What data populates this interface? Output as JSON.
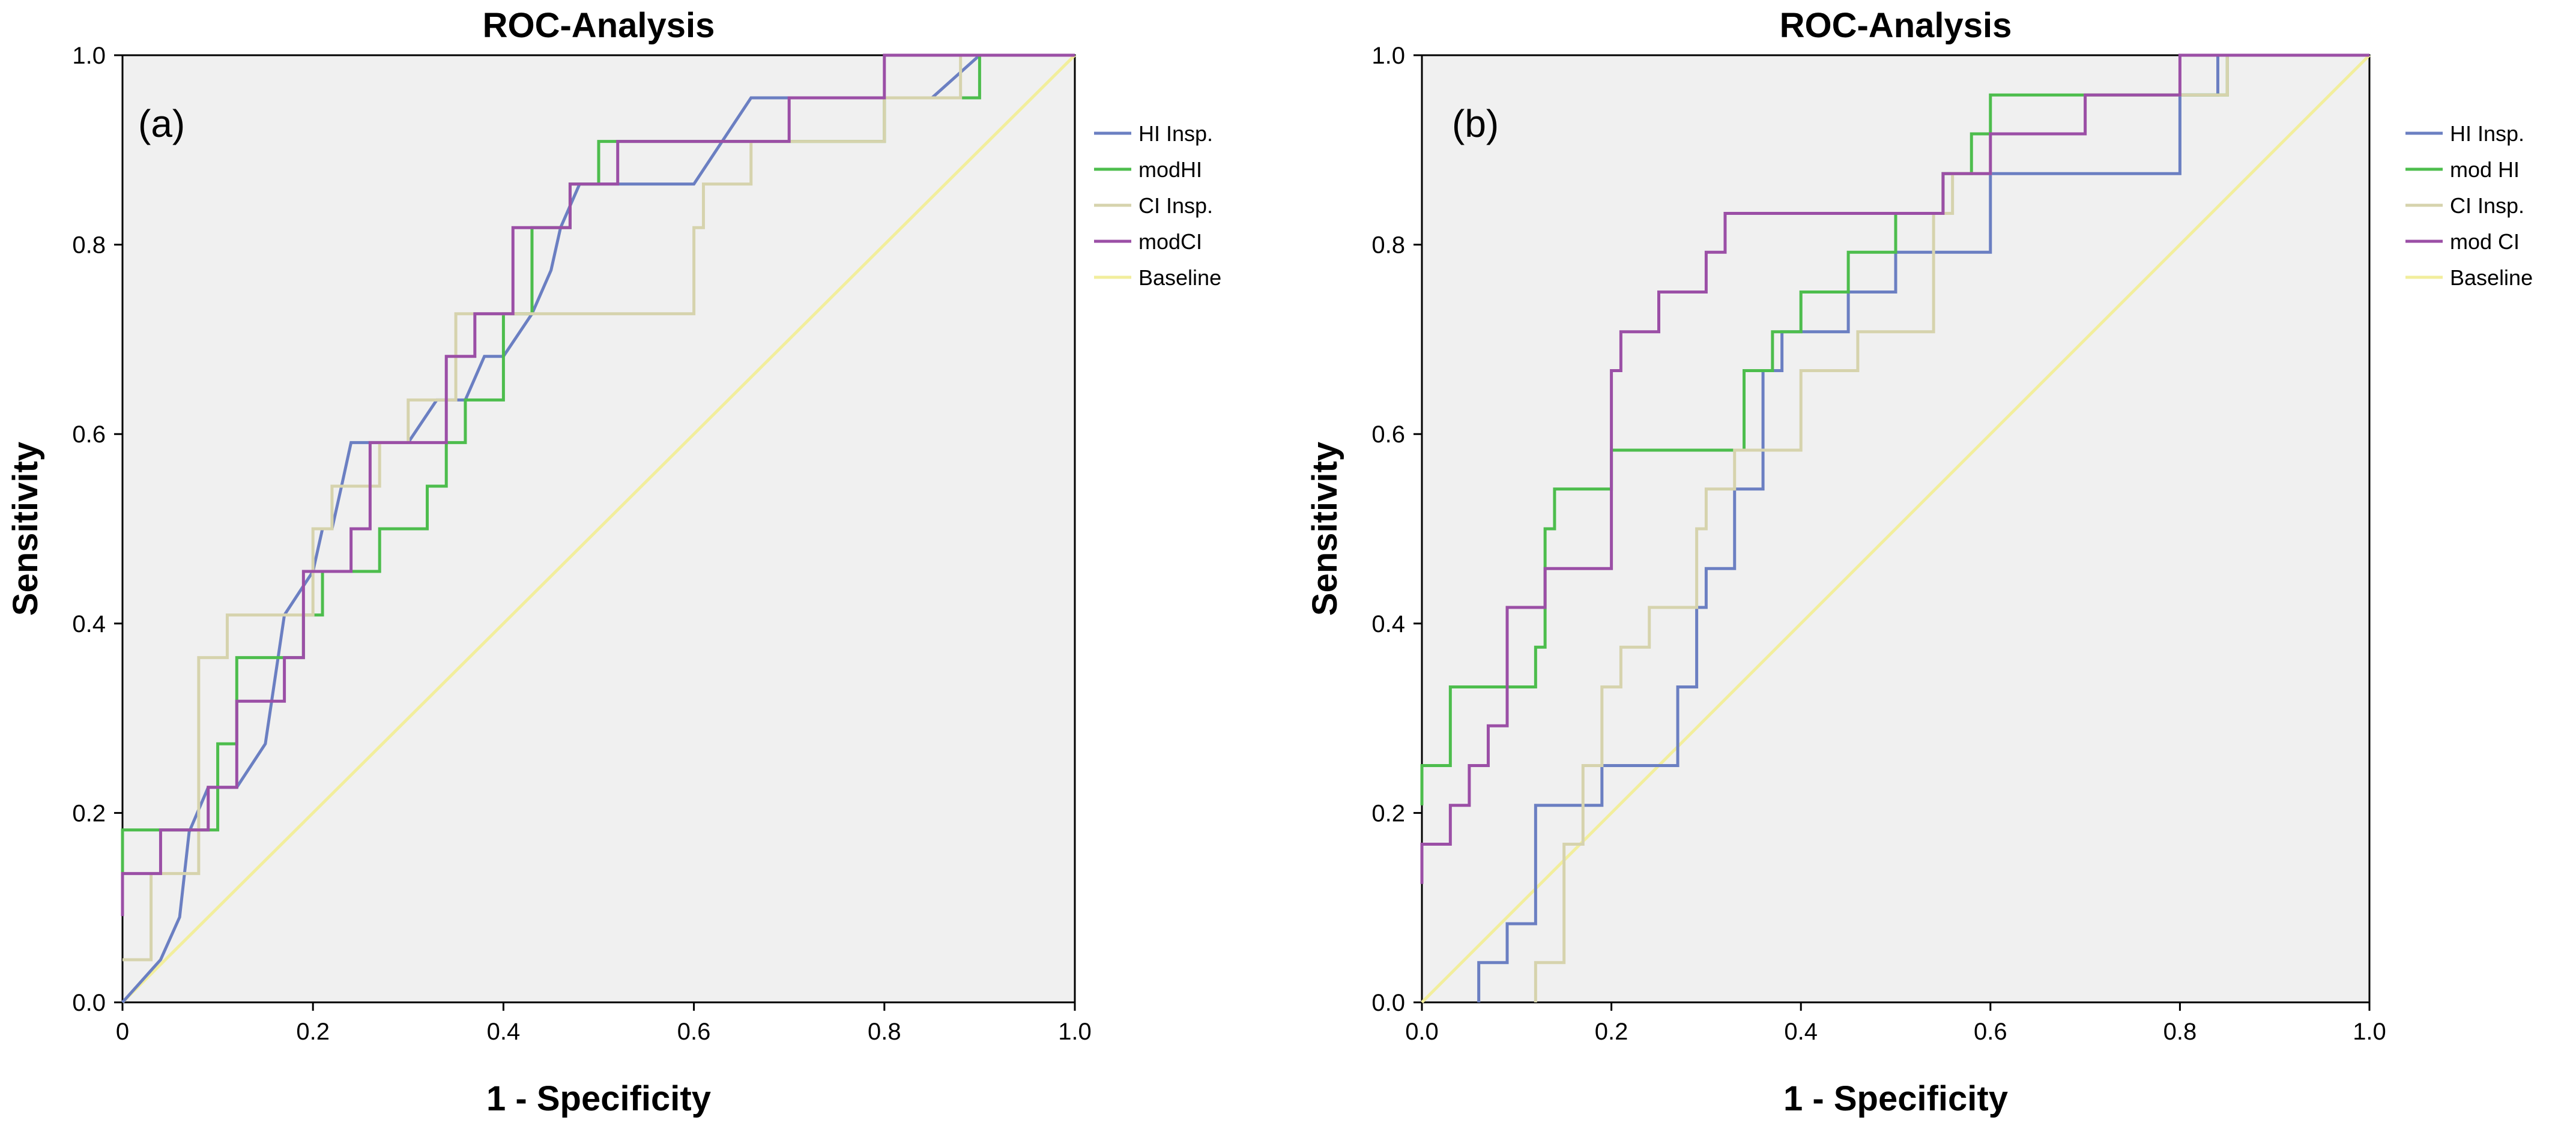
{
  "chart_data": [
    {
      "panel": "a",
      "type": "line",
      "title": "ROC-Analysis",
      "panel_label": "(a)",
      "xlabel": "1 - Specificity",
      "ylabel": "Sensitivity",
      "xlim": [
        0,
        1
      ],
      "ylim": [
        0,
        1
      ],
      "xticks": [
        "0",
        "0.2",
        "0.4",
        "0.6",
        "0.8",
        "1.0"
      ],
      "yticks": [
        "0.0",
        "0.2",
        "0.4",
        "0.6",
        "0.8",
        "1.0"
      ],
      "grid": false,
      "legend_position": "right",
      "plot_background": "#f0f0f0",
      "series": [
        {
          "name": "HI Insp.",
          "color": "#6b7fc2",
          "x": [
            0,
            0.04,
            0.06,
            0.07,
            0.09,
            0.12,
            0.15,
            0.17,
            0.2,
            0.21,
            0.22,
            0.23,
            0.24,
            0.3,
            0.33,
            0.36,
            0.38,
            0.4,
            0.43,
            0.45,
            0.46,
            0.48,
            0.52,
            0.56,
            0.6,
            0.66,
            0.7,
            0.75,
            0.8,
            0.85,
            0.9,
            0.95,
            1.0
          ],
          "y": [
            0,
            0.045,
            0.09,
            0.18,
            0.227,
            0.227,
            0.273,
            0.409,
            0.455,
            0.5,
            0.5,
            0.545,
            0.591,
            0.591,
            0.636,
            0.636,
            0.682,
            0.682,
            0.727,
            0.773,
            0.818,
            0.864,
            0.864,
            0.864,
            0.864,
            0.955,
            0.955,
            0.955,
            0.955,
            0.955,
            1.0,
            1.0,
            1.0
          ]
        },
        {
          "name": "modHI",
          "color": "#4dbd4d",
          "x": [
            0,
            0.04,
            0.1,
            0.12,
            0.17,
            0.19,
            0.21,
            0.24,
            0.27,
            0.32,
            0.34,
            0.36,
            0.4,
            0.43,
            0.47,
            0.5,
            0.55,
            0.6,
            0.65,
            0.7,
            0.75,
            0.8,
            0.85,
            0.9,
            0.95,
            1.0
          ],
          "y": [
            0.136,
            0.182,
            0.182,
            0.273,
            0.364,
            0.364,
            0.409,
            0.455,
            0.455,
            0.5,
            0.545,
            0.591,
            0.636,
            0.727,
            0.818,
            0.864,
            0.909,
            0.909,
            0.909,
            0.909,
            0.909,
            0.909,
            0.955,
            0.955,
            1.0,
            1.0
          ],
          "step": true
        },
        {
          "name": "CI Insp.",
          "color": "#d6d3ad",
          "x": [
            0,
            0.03,
            0.08,
            0.11,
            0.16,
            0.2,
            0.22,
            0.27,
            0.3,
            0.35,
            0.4,
            0.45,
            0.5,
            0.55,
            0.6,
            0.61,
            0.66,
            0.7,
            0.8,
            0.88,
            0.9,
            1.0
          ],
          "y": [
            0.045,
            0.045,
            0.136,
            0.364,
            0.409,
            0.409,
            0.5,
            0.545,
            0.591,
            0.636,
            0.727,
            0.727,
            0.727,
            0.727,
            0.727,
            0.818,
            0.864,
            0.909,
            0.909,
            0.955,
            1.0,
            1.0
          ],
          "step": true
        },
        {
          "name": "modCI",
          "color": "#9b4fa6",
          "x": [
            0,
            0.04,
            0.09,
            0.12,
            0.17,
            0.19,
            0.24,
            0.26,
            0.29,
            0.34,
            0.37,
            0.41,
            0.44,
            0.47,
            0.52,
            0.7,
            0.8,
            0.9,
            1.0
          ],
          "y": [
            0.091,
            0.136,
            0.182,
            0.227,
            0.318,
            0.364,
            0.455,
            0.5,
            0.591,
            0.591,
            0.682,
            0.727,
            0.818,
            0.818,
            0.864,
            0.909,
            0.955,
            1.0,
            1.0
          ],
          "step": true
        },
        {
          "name": "Baseline",
          "color": "#f2ee9c",
          "x": [
            0,
            1
          ],
          "y": [
            0,
            1
          ]
        }
      ]
    },
    {
      "panel": "b",
      "type": "line",
      "title": "ROC-Analysis",
      "panel_label": "(b)",
      "xlabel": "1 - Specificity",
      "ylabel": "Sensitivity",
      "xlim": [
        0,
        1
      ],
      "ylim": [
        0,
        1
      ],
      "xticks": [
        "0.0",
        "0.2",
        "0.4",
        "0.6",
        "0.8",
        "1.0"
      ],
      "yticks": [
        "0.0",
        "0.2",
        "0.4",
        "0.6",
        "0.8",
        "1.0"
      ],
      "grid": false,
      "legend_position": "right",
      "plot_background": "#f0f0f0",
      "series": [
        {
          "name": "HI Insp.",
          "color": "#6b7fc2",
          "x": [
            0.06,
            0.08,
            0.09,
            0.1,
            0.12,
            0.14,
            0.19,
            0.24,
            0.27,
            0.29,
            0.3,
            0.33,
            0.35,
            0.36,
            0.38,
            0.4,
            0.45,
            0.5,
            0.55,
            0.6,
            0.65,
            0.7,
            0.8,
            0.84,
            0.9,
            1.0
          ],
          "y": [
            0,
            0.042,
            0.042,
            0.083,
            0.083,
            0.208,
            0.208,
            0.25,
            0.25,
            0.333,
            0.417,
            0.458,
            0.542,
            0.542,
            0.667,
            0.708,
            0.708,
            0.75,
            0.792,
            0.792,
            0.875,
            0.875,
            0.875,
            0.958,
            1.0,
            1.0
          ],
          "step": true
        },
        {
          "name": "mod HI",
          "color": "#4dbd4d",
          "x": [
            0,
            0.03,
            0.05,
            0.12,
            0.13,
            0.14,
            0.16,
            0.2,
            0.3,
            0.34,
            0.37,
            0.4,
            0.45,
            0.5,
            0.55,
            0.58,
            0.6,
            0.65,
            0.85,
            0.93,
            1.0
          ],
          "y": [
            0.208,
            0.25,
            0.333,
            0.333,
            0.375,
            0.5,
            0.542,
            0.542,
            0.583,
            0.583,
            0.667,
            0.708,
            0.75,
            0.792,
            0.833,
            0.875,
            0.917,
            0.958,
            0.958,
            1.0,
            1.0
          ],
          "step": true
        },
        {
          "name": "CI Insp.",
          "color": "#d6d3ad",
          "x": [
            0.12,
            0.15,
            0.17,
            0.19,
            0.21,
            0.24,
            0.29,
            0.3,
            0.33,
            0.4,
            0.46,
            0.54,
            0.56,
            0.6,
            0.7,
            0.85,
            0.92,
            1.0
          ],
          "y": [
            0,
            0.042,
            0.167,
            0.25,
            0.333,
            0.375,
            0.417,
            0.5,
            0.542,
            0.583,
            0.667,
            0.708,
            0.833,
            0.875,
            0.917,
            0.958,
            1.0,
            1.0
          ],
          "step": true
        },
        {
          "name": "mod CI",
          "color": "#9b4fa6",
          "x": [
            0,
            0.03,
            0.05,
            0.07,
            0.09,
            0.11,
            0.13,
            0.14,
            0.2,
            0.21,
            0.25,
            0.27,
            0.3,
            0.32,
            0.33,
            0.4,
            0.5,
            0.55,
            0.6,
            0.7,
            0.8,
            0.89,
            1.0
          ],
          "y": [
            0.125,
            0.167,
            0.208,
            0.25,
            0.292,
            0.417,
            0.417,
            0.458,
            0.458,
            0.667,
            0.708,
            0.75,
            0.75,
            0.792,
            0.833,
            0.833,
            0.833,
            0.833,
            0.875,
            0.917,
            0.958,
            1.0,
            1.0
          ],
          "step": true
        },
        {
          "name": "Baseline",
          "color": "#f2ee9c",
          "x": [
            0,
            1
          ],
          "y": [
            0,
            1
          ]
        }
      ]
    }
  ]
}
